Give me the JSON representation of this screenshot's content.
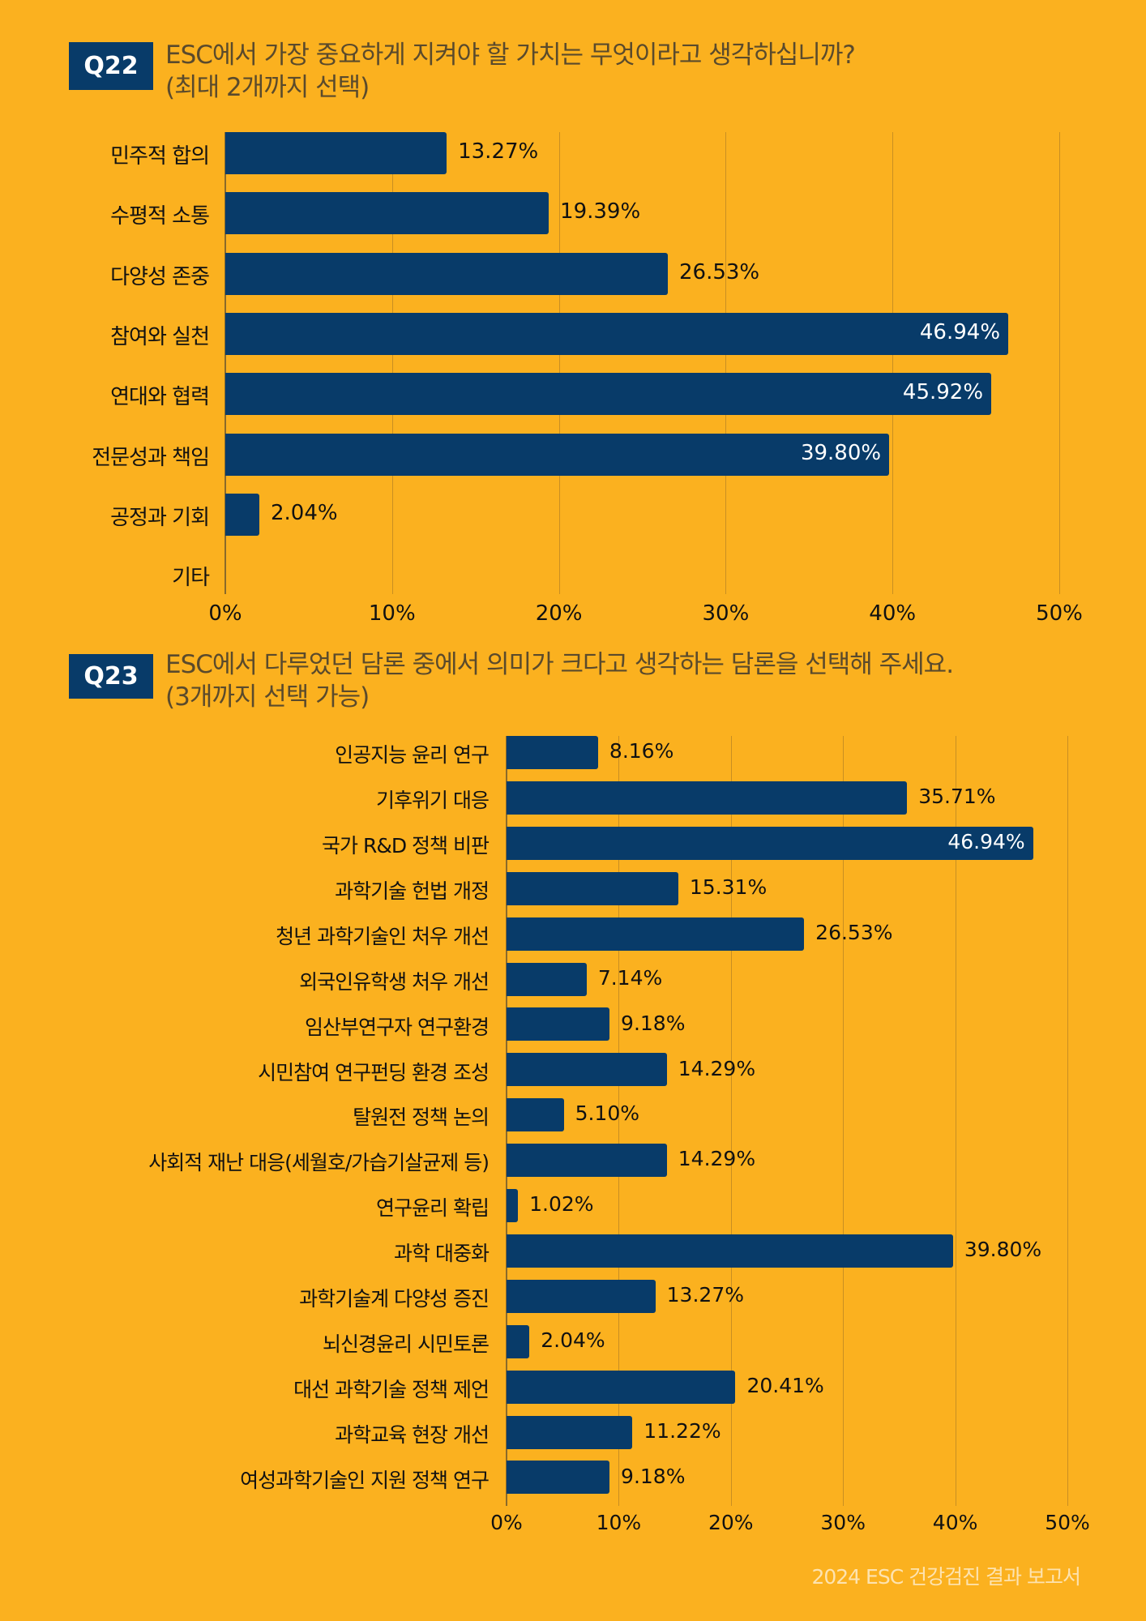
{
  "colors": {
    "background": "#FBB11F",
    "bar": "#083B69",
    "badge": "#083B69",
    "footer_text": "#FDE3B0"
  },
  "q22": {
    "badge": "Q22",
    "title_line1": "ESC에서 가장 중요하게 지켜야 할 가치는 무엇이라고 생각하십니까?",
    "title_line2": "(최대 2개까지 선택)"
  },
  "q23": {
    "badge": "Q23",
    "title_line1": "ESC에서 다루었던 담론 중에서 의미가 크다고 생각하는 담론을 선택해 주세요.",
    "title_line2": "(3개까지 선택 가능)"
  },
  "footer": "2024 ESC 건강검진 결과 보고서",
  "chart_data": [
    {
      "type": "bar",
      "orientation": "horizontal",
      "title": "ESC에서 가장 중요하게 지켜야 할 가치는 무엇이라고 생각하십니까? (최대 2개까지 선택)",
      "categories": [
        "민주적 합의",
        "수평적 소통",
        "다양성 존중",
        "참여와 실천",
        "연대와 협력",
        "전문성과 책임",
        "공정과 기회",
        "기타"
      ],
      "values": [
        13.27,
        19.39,
        26.53,
        46.94,
        45.92,
        39.8,
        2.04,
        0
      ],
      "value_labels": [
        "13.27%",
        "19.39%",
        "26.53%",
        "46.94%",
        "45.92%",
        "39.80%",
        "2.04%",
        ""
      ],
      "xlim": [
        0,
        50
      ],
      "xticks": [
        "0%",
        "10%",
        "20%",
        "30%",
        "40%",
        "50%"
      ],
      "grid": true,
      "xlabel": "",
      "ylabel": ""
    },
    {
      "type": "bar",
      "orientation": "horizontal",
      "title": "ESC에서 다루었던 담론 중에서 의미가 크다고 생각하는 담론을 선택해 주세요. (3개까지 선택 가능)",
      "categories": [
        "인공지능 윤리 연구",
        "기후위기 대응",
        "국가 R&D 정책 비판",
        "과학기술 헌법 개정",
        "청년 과학기술인 처우 개선",
        "외국인유학생 처우 개선",
        "임산부연구자 연구환경",
        "시민참여 연구펀딩 환경 조성",
        "탈원전 정책 논의",
        "사회적 재난 대응(세월호/가습기살균제 등)",
        "연구윤리 확립",
        "과학 대중화",
        "과학기술계 다양성 증진",
        "뇌신경윤리 시민토론",
        "대선 과학기술 정책 제언",
        "과학교육 현장 개선",
        "여성과학기술인 지원 정책 연구"
      ],
      "values": [
        8.16,
        35.71,
        46.94,
        15.31,
        26.53,
        7.14,
        9.18,
        14.29,
        5.1,
        14.29,
        1.02,
        39.8,
        13.27,
        2.04,
        20.41,
        11.22,
        9.18
      ],
      "value_labels": [
        "8.16%",
        "35.71%",
        "46.94%",
        "15.31%",
        "26.53%",
        "7.14%",
        "9.18%",
        "14.29%",
        "5.10%",
        "14.29%",
        "1.02%",
        "39.80%",
        "13.27%",
        "2.04%",
        "20.41%",
        "11.22%",
        "9.18%"
      ],
      "xlim": [
        0,
        50
      ],
      "xticks": [
        "0%",
        "10%",
        "20%",
        "30%",
        "40%",
        "50%"
      ],
      "grid": true,
      "xlabel": "",
      "ylabel": ""
    }
  ]
}
